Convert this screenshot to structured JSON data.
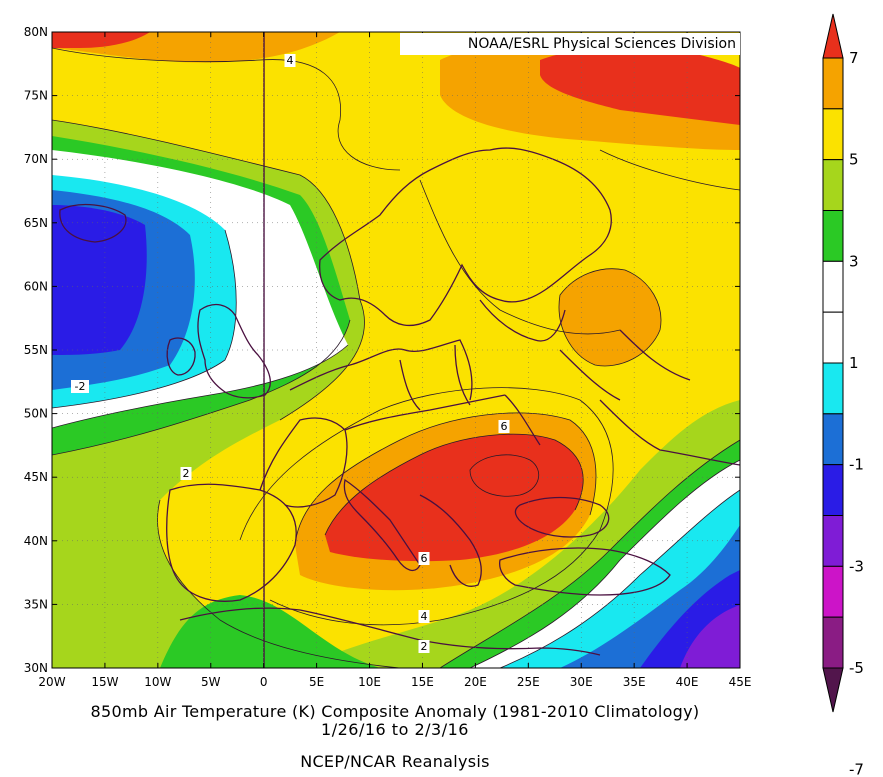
{
  "credit": "NOAA/ESRL Physical Sciences Division",
  "caption": {
    "title": "850mb Air Temperature (K) Composite Anomaly (1981-2010 Climatology)",
    "dates": "1/26/16  to 2/3/16",
    "source": "NCEP/NCAR Reanalysis"
  },
  "axes": {
    "lat_labels": [
      "80N",
      "75N",
      "70N",
      "65N",
      "60N",
      "55N",
      "50N",
      "45N",
      "40N",
      "35N",
      "30N"
    ],
    "lon_labels": [
      "20W",
      "15W",
      "10W",
      "5W",
      "0",
      "5E",
      "10E",
      "15E",
      "20E",
      "25E",
      "30E",
      "35E",
      "40E",
      "45E"
    ]
  },
  "colorbar": {
    "labels": [
      "7",
      "5",
      "3",
      "1",
      "-1",
      "-3",
      "-5",
      "-7"
    ],
    "colors": [
      "#e8301c",
      "#f5a300",
      "#fbe200",
      "#a6d61c",
      "#2bc925",
      "#ffffff",
      "#ffffff",
      "#19e8f0",
      "#1c6fd6",
      "#2a1ce6",
      "#7f1cd6",
      "#cc14c8",
      "#8a1c84",
      "#52154c"
    ]
  },
  "contour_labels": [
    {
      "text": "4"
    },
    {
      "text": "-2"
    },
    {
      "text": "2"
    },
    {
      "text": "6"
    },
    {
      "text": "6"
    },
    {
      "text": "4"
    },
    {
      "text": "2"
    }
  ],
  "palette": {
    "c_gt6": "#e8301c",
    "c_5_6": "#f5a300",
    "c_3_5": "#fbe200",
    "c_2_3": "#a6d61c",
    "c_1_2": "#2bc925",
    "c_0": "#ffffff",
    "c_m1_m2": "#19e8f0",
    "c_m2_m3": "#1c6fd6",
    "c_m3_m4": "#2a1ce6",
    "c_m4_m5": "#7f1cd6",
    "border": "#4a1040"
  }
}
